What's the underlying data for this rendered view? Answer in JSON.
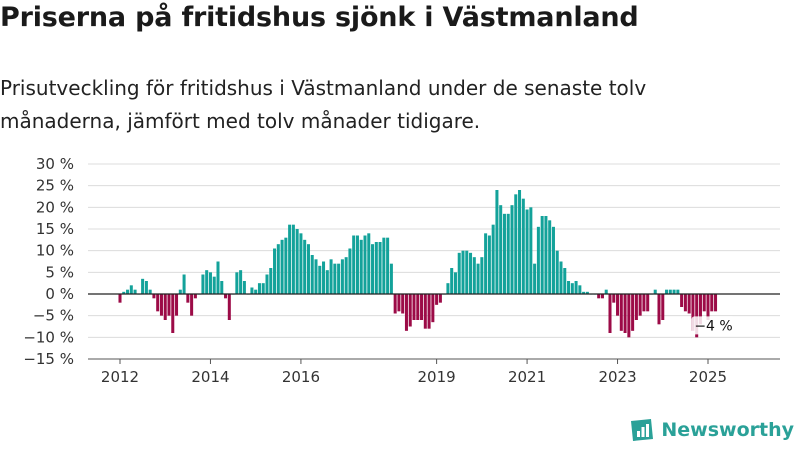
{
  "chart_data": {
    "type": "bar",
    "title": "Priserna på fritidshus sjönk i Västmanland",
    "subtitle": "Prisutveckling för fritidshus i Västmanland under de senaste tolv månaderna, jämfört med tolv månader tidigare.",
    "xlabel": "",
    "ylabel": "",
    "ylim": [
      -15,
      30
    ],
    "yticks": [
      30,
      25,
      20,
      15,
      10,
      5,
      0,
      -5,
      -10,
      -15
    ],
    "ytick_labels": [
      "30 %",
      "25 %",
      "20 %",
      "15 %",
      "10 %",
      "5 %",
      "0 %",
      "−5 %",
      "−10 %",
      "−15 %"
    ],
    "xticks": [
      {
        "year": 2012,
        "label": "2012"
      },
      {
        "year": 2014,
        "label": "2014"
      },
      {
        "year": 2016,
        "label": "2016"
      },
      {
        "year": 2019,
        "label": "2019"
      },
      {
        "year": 2021,
        "label": "2021"
      },
      {
        "year": 2023,
        "label": "2023"
      },
      {
        "year": 2025,
        "label": "2025"
      }
    ],
    "x_start": "2012-01",
    "frequency": "monthly",
    "positive_color": "#13a29a",
    "negative_color": "#9c0b47",
    "values": [
      -2,
      0.5,
      1,
      2,
      1,
      0,
      3.5,
      3,
      1,
      -1,
      -4,
      -5,
      -6,
      -5,
      -9,
      -5,
      1,
      4.5,
      -2,
      -5,
      -1,
      0,
      4.5,
      5.5,
      5,
      4,
      7.5,
      3,
      -1,
      -6,
      0,
      5,
      5.5,
      3,
      0,
      1.5,
      1,
      2.5,
      2.5,
      4.5,
      6,
      10.5,
      11.5,
      12.5,
      13,
      16,
      16,
      15,
      14,
      12.5,
      11.5,
      9,
      8,
      6.5,
      7.5,
      5.5,
      8,
      7,
      7,
      8,
      8.5,
      10.5,
      13.5,
      13.5,
      12.5,
      13.5,
      14,
      11.5,
      12,
      12,
      13,
      13,
      7,
      -4.5,
      -4,
      -4.5,
      -8.5,
      -7.5,
      -6,
      -6,
      -6,
      -8,
      -8,
      -6.5,
      -2.5,
      -2,
      0,
      2.5,
      6,
      5,
      9.5,
      10,
      10,
      9.5,
      8.5,
      7,
      8.5,
      14,
      13.5,
      16,
      24,
      20.5,
      18.5,
      18.5,
      20.5,
      23,
      24,
      22,
      19.5,
      20,
      7,
      15.5,
      18,
      18,
      17,
      15.5,
      10,
      7.5,
      6,
      3,
      2.5,
      3,
      2,
      0.5,
      0.5,
      0,
      0,
      -1,
      -1,
      1,
      -9,
      -2,
      -5,
      -8.5,
      -9,
      -10,
      -8.5,
      -6,
      -5,
      -4,
      -4,
      0,
      1,
      -7,
      -6,
      1,
      1,
      1,
      1,
      -3,
      -4,
      -4.5,
      -8.5,
      -10,
      -7,
      -4,
      -6,
      -4,
      -4
    ],
    "annotation": {
      "text": "−4 %",
      "value": -4
    }
  },
  "brand": {
    "name": "Newsworthy",
    "color": "#2aa198"
  }
}
